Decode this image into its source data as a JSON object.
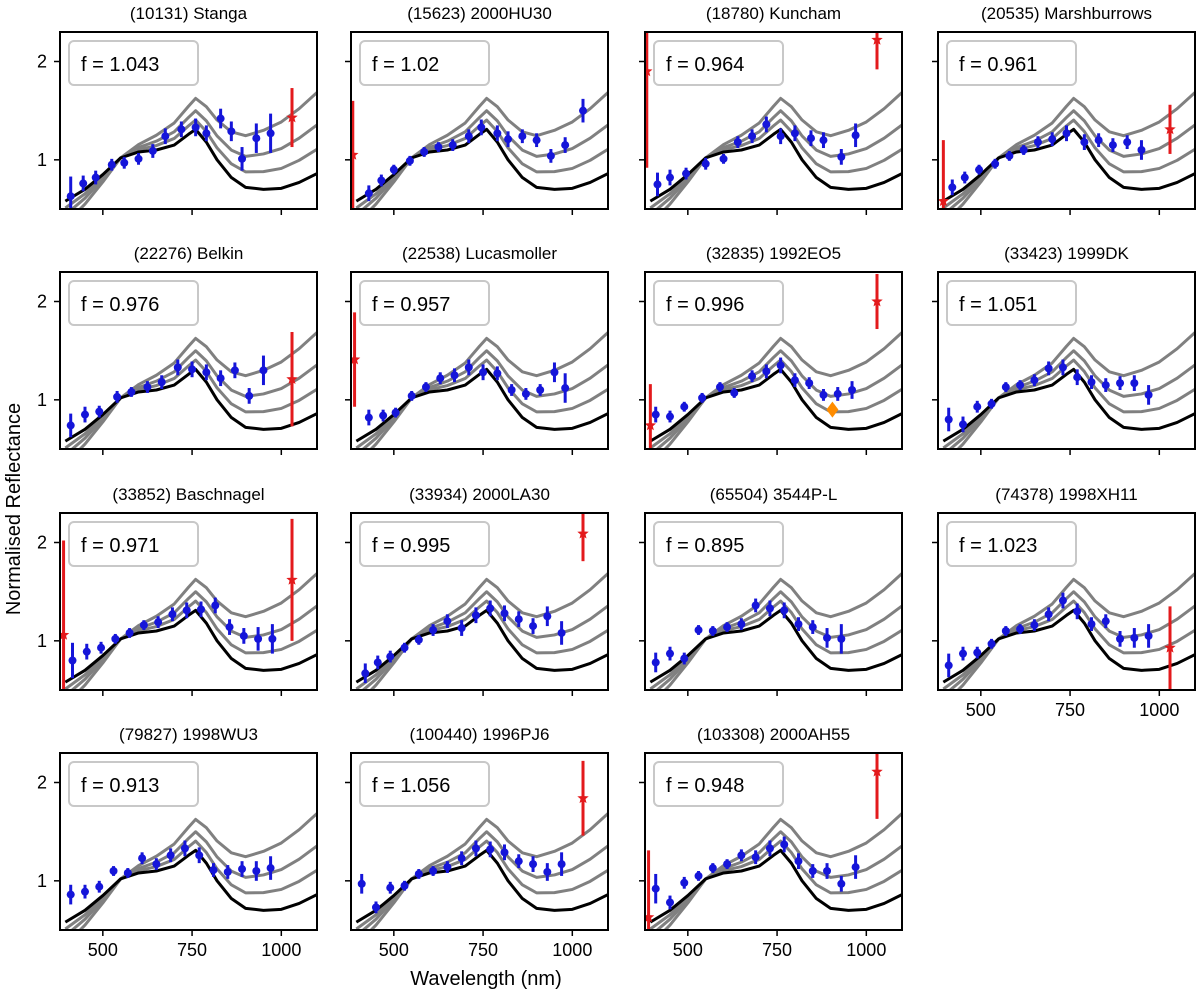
{
  "figure": {
    "xlabel": "Wavelength (nm)",
    "ylabel": "Normalised Reflectance",
    "xlim": [
      380,
      1100
    ],
    "ylim": [
      0.5,
      2.3
    ],
    "xticks": [
      500,
      750,
      1000
    ],
    "yticks": [
      1,
      2
    ],
    "f_prefix": "f = "
  },
  "chart_data": {
    "type": "scatter",
    "title": "",
    "xlabel": "Wavelength (nm)",
    "ylabel": "Normalised Reflectance",
    "xlim": [
      380,
      1100
    ],
    "ylim": [
      0.5,
      2.3
    ],
    "colors": {
      "points": "#1515d9",
      "outliers": "#e31a1c",
      "flag": "#ff8c00",
      "model": "#000000",
      "model_reddened": "#808080"
    },
    "model_x": [
      395,
      450,
      500,
      550,
      600,
      650,
      700,
      740,
      760,
      790,
      820,
      860,
      900,
      950,
      1000,
      1050,
      1100
    ],
    "model_curve": [
      0.58,
      0.7,
      0.85,
      1.02,
      1.08,
      1.1,
      1.15,
      1.26,
      1.31,
      1.18,
      1.0,
      0.82,
      0.72,
      0.7,
      0.71,
      0.77,
      0.86
    ],
    "model_reddening_slopes": [
      0.00045,
      0.0009,
      0.0015
    ],
    "panels": [
      {
        "name": "(10131) Stanga",
        "f": "1.043",
        "x": [
          410,
          445,
          480,
          525,
          560,
          600,
          640,
          675,
          720,
          760,
          790,
          830,
          860,
          890,
          930,
          970
        ],
        "y": [
          0.63,
          0.76,
          0.82,
          0.95,
          0.97,
          1.01,
          1.09,
          1.24,
          1.31,
          1.33,
          1.27,
          1.42,
          1.29,
          1.01,
          1.22,
          1.27
        ],
        "err": [
          0.2,
          0.08,
          0.07,
          0.06,
          0.06,
          0.06,
          0.07,
          0.08,
          0.08,
          0.09,
          0.08,
          0.1,
          0.1,
          0.12,
          0.15,
          0.2
        ],
        "outliers": [
          {
            "x": 1030,
            "y": 1.43,
            "err": 0.3
          }
        ]
      },
      {
        "name": "(15623) 2000HU30",
        "f": "1.02",
        "x": [
          430,
          465,
          500,
          545,
          585,
          625,
          665,
          710,
          745,
          790,
          820,
          860,
          900,
          940,
          980,
          1030
        ],
        "y": [
          0.66,
          0.79,
          0.9,
          0.99,
          1.08,
          1.13,
          1.15,
          1.24,
          1.33,
          1.27,
          1.21,
          1.24,
          1.2,
          1.04,
          1.15,
          1.5
        ],
        "err": [
          0.08,
          0.06,
          0.05,
          0.05,
          0.05,
          0.05,
          0.06,
          0.07,
          0.08,
          0.08,
          0.08,
          0.07,
          0.07,
          0.07,
          0.08,
          0.12
        ],
        "outliers": [
          {
            "x": 385,
            "y": 1.05,
            "err": 0.55
          }
        ]
      },
      {
        "name": "(18780) Kuncham",
        "f": "0.964",
        "x": [
          415,
          450,
          495,
          550,
          600,
          640,
          680,
          720,
          760,
          800,
          845,
          880,
          930,
          970
        ],
        "y": [
          0.75,
          0.82,
          0.86,
          0.96,
          1.01,
          1.18,
          1.24,
          1.36,
          1.24,
          1.27,
          1.22,
          1.2,
          1.03,
          1.25
        ],
        "err": [
          0.12,
          0.08,
          0.06,
          0.06,
          0.05,
          0.06,
          0.07,
          0.08,
          0.08,
          0.08,
          0.08,
          0.08,
          0.08,
          0.12
        ],
        "outliers": [
          {
            "x": 385,
            "y": 1.9,
            "err": 0.98
          },
          {
            "x": 1030,
            "y": 2.22,
            "err": 0.3
          }
        ]
      },
      {
        "name": "(20535) Marshburrows",
        "f": "0.961",
        "x": [
          420,
          455,
          495,
          540,
          580,
          620,
          660,
          700,
          740,
          790,
          830,
          870,
          910,
          950
        ],
        "y": [
          0.72,
          0.82,
          0.9,
          0.96,
          1.04,
          1.1,
          1.18,
          1.21,
          1.27,
          1.18,
          1.2,
          1.15,
          1.18,
          1.1
        ],
        "err": [
          0.08,
          0.06,
          0.05,
          0.05,
          0.05,
          0.05,
          0.06,
          0.07,
          0.08,
          0.08,
          0.07,
          0.07,
          0.07,
          0.1
        ],
        "outliers": [
          {
            "x": 395,
            "y": 0.58,
            "err": 0.62
          },
          {
            "x": 1030,
            "y": 1.31,
            "err": 0.25
          }
        ]
      },
      {
        "name": "(22276) Belkin",
        "f": "0.976",
        "x": [
          410,
          450,
          490,
          540,
          580,
          625,
          665,
          710,
          750,
          790,
          830,
          870,
          910,
          950
        ],
        "y": [
          0.74,
          0.85,
          0.88,
          1.03,
          1.08,
          1.13,
          1.18,
          1.33,
          1.31,
          1.28,
          1.22,
          1.3,
          1.04,
          1.3
        ],
        "err": [
          0.12,
          0.08,
          0.06,
          0.06,
          0.05,
          0.06,
          0.07,
          0.08,
          0.08,
          0.08,
          0.08,
          0.08,
          0.08,
          0.15
        ],
        "outliers": [
          {
            "x": 1030,
            "y": 1.21,
            "err": 0.48
          }
        ]
      },
      {
        "name": "(22538) Lucasmoller",
        "f": "0.957",
        "x": [
          430,
          470,
          505,
          550,
          590,
          630,
          670,
          710,
          750,
          790,
          830,
          870,
          910,
          950,
          980
        ],
        "y": [
          0.82,
          0.84,
          0.87,
          1.04,
          1.13,
          1.22,
          1.25,
          1.33,
          1.28,
          1.27,
          1.1,
          1.06,
          1.1,
          1.28,
          1.12
        ],
        "err": [
          0.08,
          0.06,
          0.05,
          0.05,
          0.05,
          0.06,
          0.07,
          0.08,
          0.08,
          0.07,
          0.06,
          0.06,
          0.06,
          0.1,
          0.15
        ],
        "outliers": [
          {
            "x": 390,
            "y": 1.41,
            "err": 0.48
          }
        ]
      },
      {
        "name": "(32835) 1992EO5",
        "f": "0.996",
        "x": [
          410,
          450,
          490,
          540,
          590,
          630,
          680,
          720,
          760,
          800,
          840,
          880,
          920,
          960
        ],
        "y": [
          0.85,
          0.83,
          0.93,
          1.02,
          1.13,
          1.07,
          1.24,
          1.29,
          1.35,
          1.2,
          1.17,
          1.05,
          1.06,
          1.1
        ],
        "err": [
          0.08,
          0.06,
          0.05,
          0.05,
          0.05,
          0.05,
          0.06,
          0.07,
          0.08,
          0.07,
          0.06,
          0.06,
          0.07,
          0.09
        ],
        "outliers": [
          {
            "x": 395,
            "y": 0.74,
            "err": 0.42
          },
          {
            "x": 1030,
            "y": 2.0,
            "err": 0.28
          }
        ],
        "flags": [
          {
            "x": 905,
            "y": 0.9
          }
        ]
      },
      {
        "name": "(33423) 1999DK",
        "f": "1.051",
        "x": [
          410,
          450,
          490,
          530,
          570,
          610,
          650,
          690,
          730,
          770,
          810,
          850,
          890,
          930,
          970
        ],
        "y": [
          0.8,
          0.75,
          0.93,
          0.96,
          1.13,
          1.15,
          1.2,
          1.32,
          1.33,
          1.23,
          1.18,
          1.15,
          1.17,
          1.17,
          1.05
        ],
        "err": [
          0.12,
          0.08,
          0.06,
          0.05,
          0.05,
          0.05,
          0.06,
          0.07,
          0.08,
          0.08,
          0.07,
          0.07,
          0.07,
          0.08,
          0.1
        ],
        "outliers": []
      },
      {
        "name": "(33852) Baschnagel",
        "f": "0.971",
        "x": [
          415,
          455,
          495,
          535,
          575,
          615,
          655,
          695,
          735,
          775,
          815,
          855,
          895,
          935,
          975
        ],
        "y": [
          0.8,
          0.89,
          0.93,
          1.02,
          1.08,
          1.16,
          1.19,
          1.27,
          1.31,
          1.32,
          1.36,
          1.14,
          1.05,
          1.02,
          1.02
        ],
        "err": [
          0.18,
          0.08,
          0.06,
          0.05,
          0.05,
          0.05,
          0.06,
          0.07,
          0.08,
          0.08,
          0.08,
          0.08,
          0.08,
          0.12,
          0.15
        ],
        "outliers": [
          {
            "x": 390,
            "y": 1.06,
            "err": 0.96
          },
          {
            "x": 1030,
            "y": 1.62,
            "err": 0.62
          }
        ]
      },
      {
        "name": "(33934) 2000LA30",
        "f": "0.995",
        "x": [
          420,
          455,
          490,
          530,
          570,
          610,
          650,
          690,
          730,
          770,
          810,
          850,
          890,
          930,
          970
        ],
        "y": [
          0.67,
          0.78,
          0.84,
          0.93,
          1.01,
          1.11,
          1.2,
          1.13,
          1.26,
          1.33,
          1.28,
          1.22,
          1.15,
          1.25,
          1.08
        ],
        "err": [
          0.1,
          0.07,
          0.06,
          0.05,
          0.05,
          0.06,
          0.07,
          0.08,
          0.08,
          0.08,
          0.08,
          0.08,
          0.08,
          0.1,
          0.12
        ],
        "outliers": [
          {
            "x": 1030,
            "y": 2.09,
            "err": 0.28
          }
        ]
      },
      {
        "name": "(65504) 3544P-L",
        "f": "0.895",
        "x": [
          410,
          450,
          490,
          530,
          570,
          610,
          650,
          690,
          730,
          770,
          810,
          850,
          890,
          930
        ],
        "y": [
          0.78,
          0.87,
          0.82,
          1.11,
          1.1,
          1.14,
          1.17,
          1.36,
          1.33,
          1.31,
          1.17,
          1.14,
          1.03,
          1.02
        ],
        "err": [
          0.1,
          0.07,
          0.06,
          0.05,
          0.05,
          0.05,
          0.06,
          0.07,
          0.08,
          0.08,
          0.07,
          0.07,
          0.1,
          0.15
        ],
        "outliers": []
      },
      {
        "name": "(74378) 1998XH11",
        "f": "1.023",
        "x": [
          410,
          450,
          490,
          530,
          570,
          610,
          650,
          690,
          730,
          770,
          810,
          850,
          890,
          930,
          970
        ],
        "y": [
          0.75,
          0.87,
          0.88,
          0.97,
          1.1,
          1.12,
          1.16,
          1.27,
          1.41,
          1.3,
          1.17,
          1.2,
          1.02,
          1.03,
          1.05
        ],
        "err": [
          0.12,
          0.07,
          0.06,
          0.05,
          0.05,
          0.05,
          0.06,
          0.07,
          0.08,
          0.08,
          0.07,
          0.07,
          0.08,
          0.1,
          0.12
        ],
        "outliers": [
          {
            "x": 1030,
            "y": 0.93,
            "err": 0.42
          }
        ]
      },
      {
        "name": "(79827) 1998WU3",
        "f": "0.913",
        "x": [
          410,
          450,
          490,
          530,
          570,
          610,
          650,
          690,
          730,
          770,
          810,
          850,
          890,
          930,
          970
        ],
        "y": [
          0.86,
          0.89,
          0.94,
          1.1,
          1.08,
          1.23,
          1.17,
          1.26,
          1.33,
          1.26,
          1.11,
          1.09,
          1.12,
          1.1,
          1.13
        ],
        "err": [
          0.1,
          0.07,
          0.06,
          0.05,
          0.05,
          0.06,
          0.06,
          0.07,
          0.08,
          0.08,
          0.07,
          0.07,
          0.08,
          0.1,
          0.12
        ],
        "outliers": []
      },
      {
        "name": "(100440) 1996PJ6",
        "f": "1.056",
        "x": [
          410,
          450,
          490,
          530,
          570,
          610,
          650,
          690,
          730,
          770,
          810,
          850,
          890,
          930,
          970
        ],
        "y": [
          0.97,
          0.73,
          0.93,
          0.95,
          1.07,
          1.1,
          1.14,
          1.23,
          1.33,
          1.32,
          1.29,
          1.2,
          1.17,
          1.09,
          1.17
        ],
        "err": [
          0.1,
          0.06,
          0.06,
          0.05,
          0.05,
          0.05,
          0.06,
          0.07,
          0.08,
          0.08,
          0.08,
          0.07,
          0.08,
          0.09,
          0.12
        ],
        "outliers": [
          {
            "x": 1030,
            "y": 1.84,
            "err": 0.38
          }
        ]
      },
      {
        "name": "(103308) 2000AH55",
        "f": "0.948",
        "x": [
          410,
          450,
          490,
          530,
          570,
          610,
          650,
          690,
          730,
          770,
          810,
          850,
          890,
          930,
          970
        ],
        "y": [
          0.92,
          0.78,
          0.98,
          1.05,
          1.13,
          1.17,
          1.26,
          1.24,
          1.33,
          1.37,
          1.2,
          1.1,
          1.1,
          0.97,
          1.14
        ],
        "err": [
          0.15,
          0.07,
          0.06,
          0.05,
          0.05,
          0.05,
          0.06,
          0.07,
          0.08,
          0.08,
          0.08,
          0.07,
          0.08,
          0.08,
          0.12
        ],
        "outliers": [
          {
            "x": 390,
            "y": 0.63,
            "err": 0.68
          },
          {
            "x": 1030,
            "y": 2.11,
            "err": 0.48
          }
        ]
      }
    ]
  }
}
